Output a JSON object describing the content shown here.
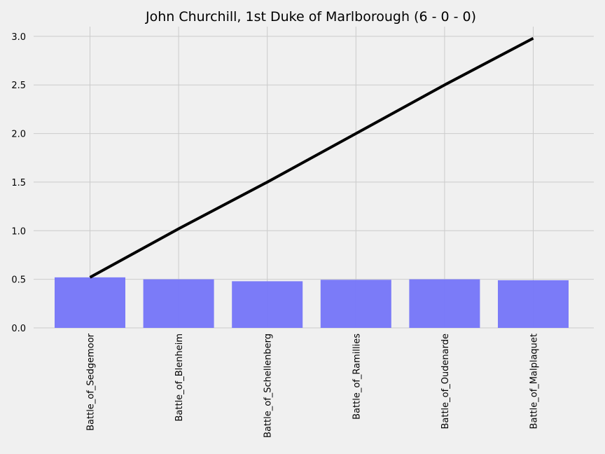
{
  "chart_data": {
    "type": "bar",
    "title": "John Churchill, 1st Duke of Marlborough (6 - 0 - 0)",
    "categories": [
      "Battle_of_Sedgemoor",
      "Battle_of_Blenheim",
      "Battle_of_Schellenberg",
      "Battle_of_Ramillies",
      "Battle_of_Oudenarde",
      "Battle_of_Malplaquet"
    ],
    "series": [
      {
        "type": "bar",
        "values": [
          0.52,
          0.5,
          0.48,
          0.495,
          0.5,
          0.49
        ]
      },
      {
        "type": "line",
        "values": [
          0.52,
          1.02,
          1.5,
          2.0,
          2.5,
          2.98
        ]
      }
    ],
    "ylim": [
      0,
      3.1
    ],
    "yticks": [
      "0.0",
      "0.5",
      "1.0",
      "1.5",
      "2.0",
      "2.5",
      "3.0"
    ],
    "xlabel": "",
    "ylabel": "",
    "grid": true,
    "colors": {
      "bar": "#7777f8",
      "line": "#000000",
      "background": "#f0f0f0",
      "grid": "#cbcbcb"
    }
  }
}
